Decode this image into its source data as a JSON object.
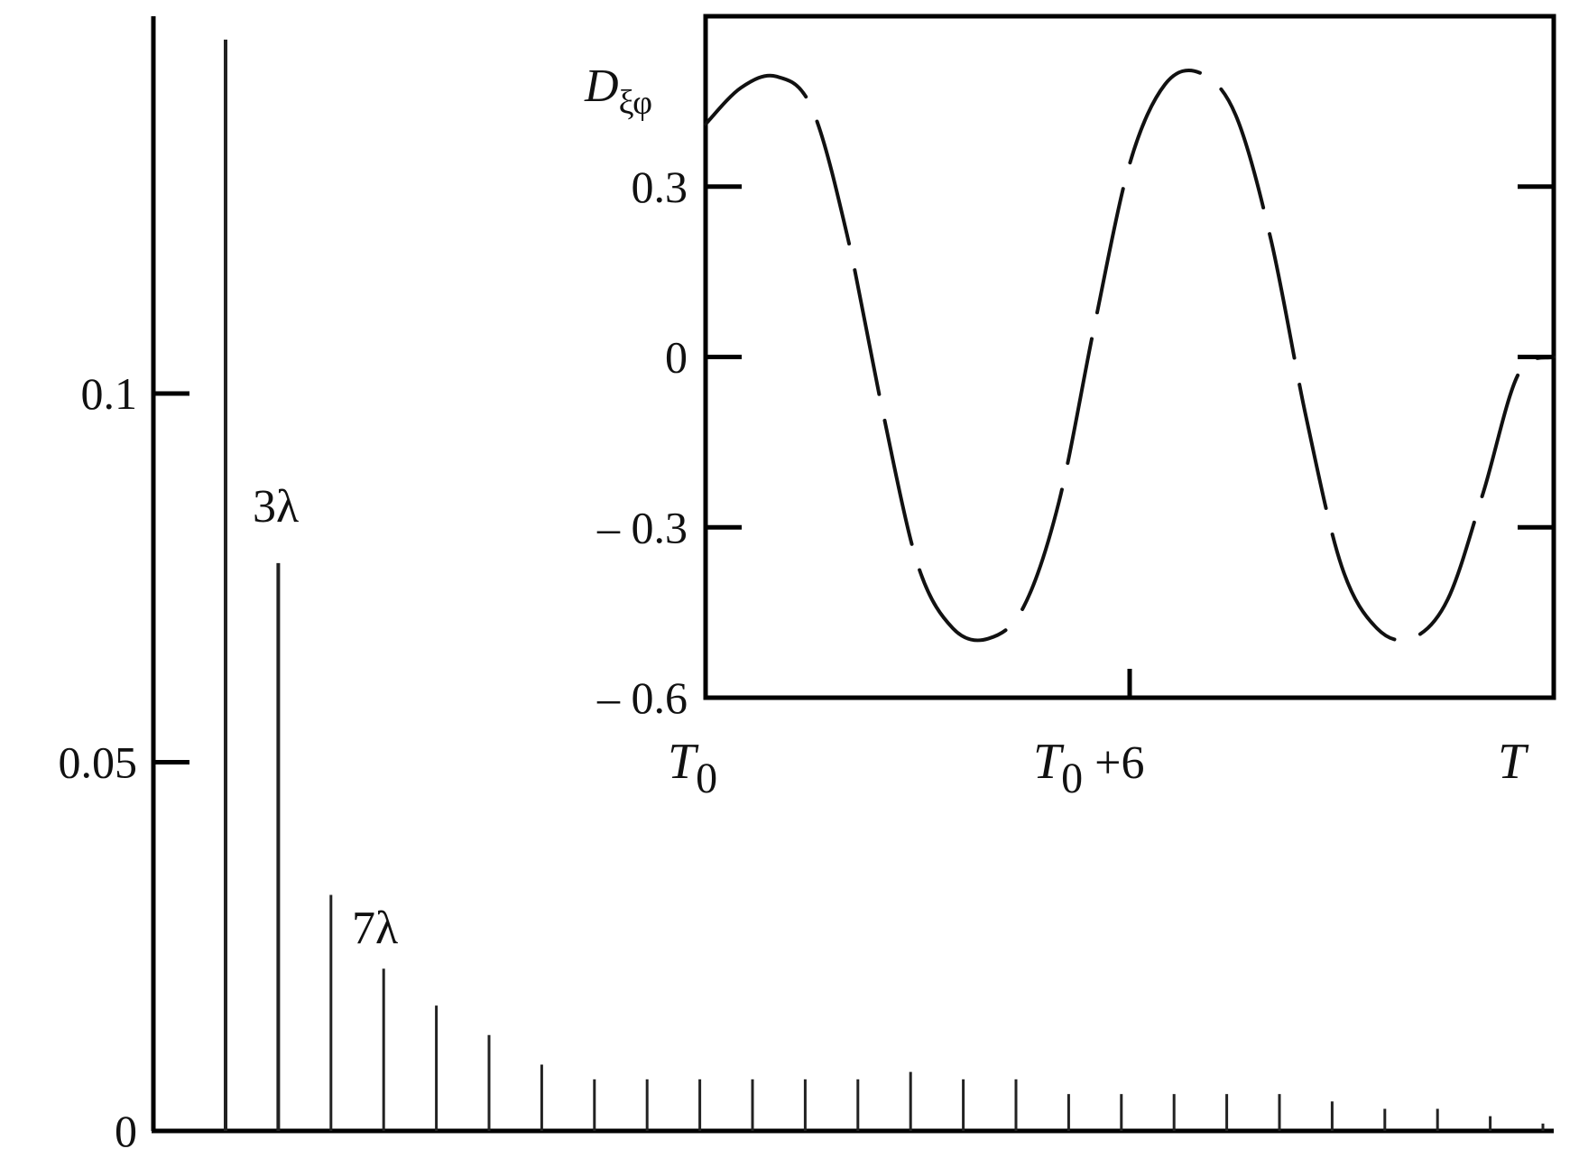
{
  "chart_data": [
    {
      "type": "bar",
      "title": "",
      "xlabel": "",
      "ylabel": "",
      "ylim": [
        0,
        0.148
      ],
      "y_ticks": [
        {
          "value": 0,
          "label": "0"
        },
        {
          "value": 0.05,
          "label": "0.05"
        },
        {
          "value": 0.1,
          "label": "0.1"
        }
      ],
      "x_ticks": [],
      "grid": false,
      "series": [
        {
          "x": [
            1,
            2,
            3,
            4,
            5,
            6,
            7,
            8,
            9,
            10,
            11,
            12,
            13,
            14,
            15,
            16,
            17,
            18,
            19,
            20,
            21,
            22,
            23,
            24,
            25,
            26
          ],
          "values": [
            0.148,
            0.077,
            0.032,
            0.022,
            0.017,
            0.013,
            0.009,
            0.007,
            0.007,
            0.007,
            0.007,
            0.007,
            0.007,
            0.008,
            0.007,
            0.007,
            0.005,
            0.005,
            0.005,
            0.005,
            0.005,
            0.004,
            0.003,
            0.003,
            0.002,
            0.001
          ]
        }
      ],
      "annotations": [
        {
          "text": "3λ",
          "target_index": 1
        },
        {
          "text": "7λ",
          "target_index": 3
        }
      ]
    },
    {
      "type": "line",
      "inset": true,
      "title": "",
      "ylabel_main": "D",
      "ylabel_sub": "ξφ",
      "xlabel": "",
      "ylim": [
        -0.6,
        0.6
      ],
      "xlim": [
        0,
        12
      ],
      "y_ticks": [
        {
          "value": -0.6,
          "label": "– 0.6"
        },
        {
          "value": -0.3,
          "label": "– 0.3"
        },
        {
          "value": 0,
          "label": "0"
        },
        {
          "value": 0.3,
          "label": "0.3"
        }
      ],
      "x_ticks": [
        {
          "value": 0,
          "main": "T",
          "sub": "0",
          "suffix": ""
        },
        {
          "value": 6,
          "main": "T",
          "sub": "0",
          "suffix": " +6"
        },
        {
          "value": 12,
          "main": "T",
          "sub": "",
          "suffix": ""
        }
      ],
      "grid": false,
      "line_style": "dashed",
      "series": [
        {
          "x": [
            0,
            0.5,
            1.0,
            1.5,
            2.0,
            2.5,
            3.0,
            3.5,
            4.0,
            4.5,
            5.0,
            5.5,
            6.0,
            6.5,
            7.0,
            7.5,
            8.0,
            8.5,
            9.0,
            9.5,
            10.0,
            10.5,
            11.0,
            11.5,
            12.0
          ],
          "values": [
            0.41,
            0.474,
            0.494,
            0.439,
            0.216,
            -0.092,
            -0.365,
            -0.478,
            -0.496,
            -0.44,
            -0.255,
            0.054,
            0.34,
            0.48,
            0.5,
            0.426,
            0.206,
            -0.108,
            -0.369,
            -0.478,
            -0.495,
            -0.427,
            -0.24,
            -0.03,
            0.0
          ]
        }
      ]
    }
  ]
}
